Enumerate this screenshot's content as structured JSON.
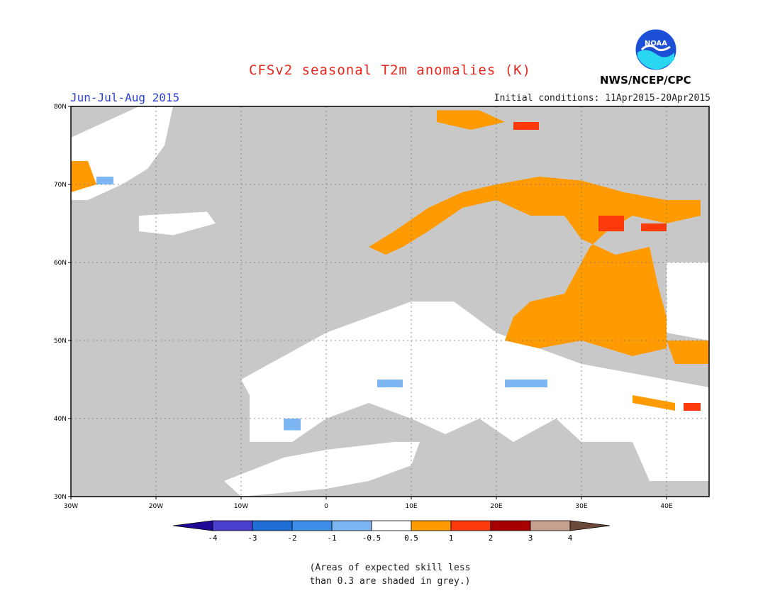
{
  "header": {
    "title": "CFSv2 seasonal T2m anomalies (K)",
    "season": "Jun-Jul-Aug 2015",
    "initial_conditions": "Initial conditions: 11Apr2015-20Apr2015",
    "agency": "NWS/NCEP/CPC",
    "logo_text": "NOAA"
  },
  "map": {
    "lon_range": [
      -30,
      45
    ],
    "lat_range": [
      30,
      80
    ],
    "lon_ticks": [
      "30W",
      "20W",
      "10W",
      "0",
      "10E",
      "20E",
      "30E",
      "40E"
    ],
    "lat_ticks": [
      "80N",
      "70N",
      "60N",
      "50N",
      "40N",
      "30N"
    ],
    "grid": true,
    "colors": {
      "ocean_low_skill": "#c8c8c8",
      "land_low_skill": "#c8c8c8",
      "neutral": "#ffffff"
    }
  },
  "colorbar": {
    "tick_labels": [
      "-4",
      "-3",
      "-2",
      "-1",
      "-0.5",
      "0.5",
      "1",
      "2",
      "3",
      "4"
    ],
    "colors": [
      "#1e0a96",
      "#4b3fcf",
      "#1f6fd6",
      "#3d8ee8",
      "#7bb5f2",
      "#ffffff",
      "#ff9a00",
      "#ff3a0a",
      "#a80000",
      "#c8a090",
      "#6b4a3a"
    ]
  },
  "anomaly_regions": [
    {
      "name": "scandinavia-coast",
      "value": 1,
      "points": [
        [
          5,
          62
        ],
        [
          8,
          64
        ],
        [
          12,
          67
        ],
        [
          16,
          69
        ],
        [
          20,
          70
        ],
        [
          25,
          71
        ],
        [
          30,
          70.5
        ],
        [
          35,
          69
        ],
        [
          40,
          68
        ],
        [
          44,
          68
        ],
        [
          44,
          66
        ],
        [
          40,
          65
        ],
        [
          36,
          66
        ],
        [
          33,
          64
        ],
        [
          31,
          62
        ],
        [
          30,
          60
        ],
        [
          29,
          58
        ],
        [
          28,
          56
        ],
        [
          24,
          55
        ],
        [
          22,
          53
        ],
        [
          21,
          50
        ],
        [
          25,
          49
        ],
        [
          30,
          50
        ],
        [
          33,
          49
        ],
        [
          36,
          48
        ],
        [
          40,
          49
        ],
        [
          40,
          53
        ],
        [
          39,
          57
        ],
        [
          38,
          62
        ],
        [
          34,
          61
        ],
        [
          30,
          63
        ],
        [
          28,
          66
        ],
        [
          24,
          66
        ],
        [
          20,
          68
        ],
        [
          16,
          67
        ],
        [
          12,
          64
        ],
        [
          9,
          62
        ],
        [
          7,
          61
        ]
      ]
    },
    {
      "name": "russia-east",
      "value": 1,
      "points": [
        [
          40,
          50
        ],
        [
          45,
          50
        ],
        [
          45,
          47
        ],
        [
          41,
          47
        ]
      ]
    },
    {
      "name": "caucasus",
      "value": 1,
      "points": [
        [
          36,
          43
        ],
        [
          41,
          42
        ],
        [
          41,
          41
        ],
        [
          36,
          42
        ]
      ]
    },
    {
      "name": "svalbard",
      "value": 1,
      "points": [
        [
          13,
          79.5
        ],
        [
          18,
          79.5
        ],
        [
          21,
          78
        ],
        [
          17,
          77
        ],
        [
          13,
          78
        ]
      ]
    },
    {
      "name": "greenland-east",
      "value": 1,
      "points": [
        [
          -30,
          73
        ],
        [
          -28,
          73
        ],
        [
          -27,
          70
        ],
        [
          -30,
          69
        ]
      ]
    },
    {
      "name": "kola-hot",
      "value": 2,
      "points": [
        [
          32,
          66
        ],
        [
          35,
          66
        ],
        [
          35,
          64
        ],
        [
          32,
          64
        ]
      ]
    },
    {
      "name": "north-russia-hot",
      "value": 2,
      "points": [
        [
          37,
          65
        ],
        [
          40,
          65
        ],
        [
          40,
          64
        ],
        [
          37,
          64
        ]
      ]
    },
    {
      "name": "svalbard-hot",
      "value": 2,
      "points": [
        [
          22,
          78
        ],
        [
          25,
          78
        ],
        [
          25,
          77
        ],
        [
          22,
          77
        ]
      ]
    },
    {
      "name": "caucasus-hot",
      "value": 2,
      "points": [
        [
          42,
          42
        ],
        [
          44,
          42
        ],
        [
          44,
          41
        ],
        [
          42,
          41
        ]
      ]
    },
    {
      "name": "iberia-cool",
      "value": -1,
      "points": [
        [
          -5,
          40
        ],
        [
          -3,
          40
        ],
        [
          -3,
          38.5
        ],
        [
          -5,
          38.5
        ]
      ]
    },
    {
      "name": "pyrenees-cool",
      "value": -1,
      "points": [
        [
          6,
          45
        ],
        [
          9,
          45
        ],
        [
          9,
          44
        ],
        [
          6,
          44
        ]
      ]
    },
    {
      "name": "balkans-cool",
      "value": -1,
      "points": [
        [
          21,
          45
        ],
        [
          26,
          45
        ],
        [
          26,
          44
        ],
        [
          21,
          44
        ]
      ]
    },
    {
      "name": "greenland-cool",
      "value": -1,
      "points": [
        [
          -27,
          71
        ],
        [
          -25,
          71
        ],
        [
          -25,
          70
        ],
        [
          -27,
          70
        ]
      ]
    }
  ],
  "white_regions": [
    {
      "name": "europe-central",
      "points": [
        [
          -10,
          45
        ],
        [
          -5,
          48
        ],
        [
          0,
          51
        ],
        [
          5,
          53
        ],
        [
          10,
          55
        ],
        [
          15,
          55
        ],
        [
          20,
          51
        ],
        [
          25,
          49
        ],
        [
          30,
          47
        ],
        [
          35,
          46
        ],
        [
          40,
          45
        ],
        [
          45,
          44
        ],
        [
          45,
          38
        ],
        [
          40,
          37
        ],
        [
          36,
          37
        ],
        [
          30,
          37
        ],
        [
          27,
          40
        ],
        [
          22,
          37
        ],
        [
          18,
          40
        ],
        [
          14,
          38
        ],
        [
          10,
          40
        ],
        [
          5,
          42
        ],
        [
          0,
          40
        ],
        [
          -4,
          37
        ],
        [
          -9,
          37
        ],
        [
          -9,
          43
        ]
      ]
    },
    {
      "name": "north-africa",
      "points": [
        [
          -12,
          32
        ],
        [
          -5,
          35
        ],
        [
          0,
          36
        ],
        [
          8,
          37
        ],
        [
          11,
          37
        ],
        [
          10,
          34
        ],
        [
          5,
          32
        ],
        [
          0,
          31
        ],
        [
          -10,
          30
        ]
      ]
    },
    {
      "name": "anatolia-east",
      "points": [
        [
          40,
          41
        ],
        [
          45,
          41
        ],
        [
          45,
          32
        ],
        [
          38,
          32
        ],
        [
          36,
          37
        ]
      ]
    },
    {
      "name": "russia-east-white",
      "points": [
        [
          40,
          60
        ],
        [
          45,
          60
        ],
        [
          45,
          50
        ],
        [
          40,
          51
        ]
      ]
    },
    {
      "name": "iceland",
      "points": [
        [
          -22,
          66
        ],
        [
          -14,
          66.5
        ],
        [
          -13,
          65
        ],
        [
          -18,
          63.5
        ],
        [
          -22,
          64
        ]
      ]
    },
    {
      "name": "greenland",
      "points": [
        [
          -30,
          76
        ],
        [
          -22,
          80
        ],
        [
          -18,
          80
        ],
        [
          -19,
          75
        ],
        [
          -21,
          72
        ],
        [
          -24,
          70
        ],
        [
          -28,
          68
        ],
        [
          -30,
          68
        ]
      ]
    }
  ],
  "footnote": {
    "line1": "(Areas of expected skill less",
    "line2": "than 0.3 are shaded in grey.)"
  }
}
